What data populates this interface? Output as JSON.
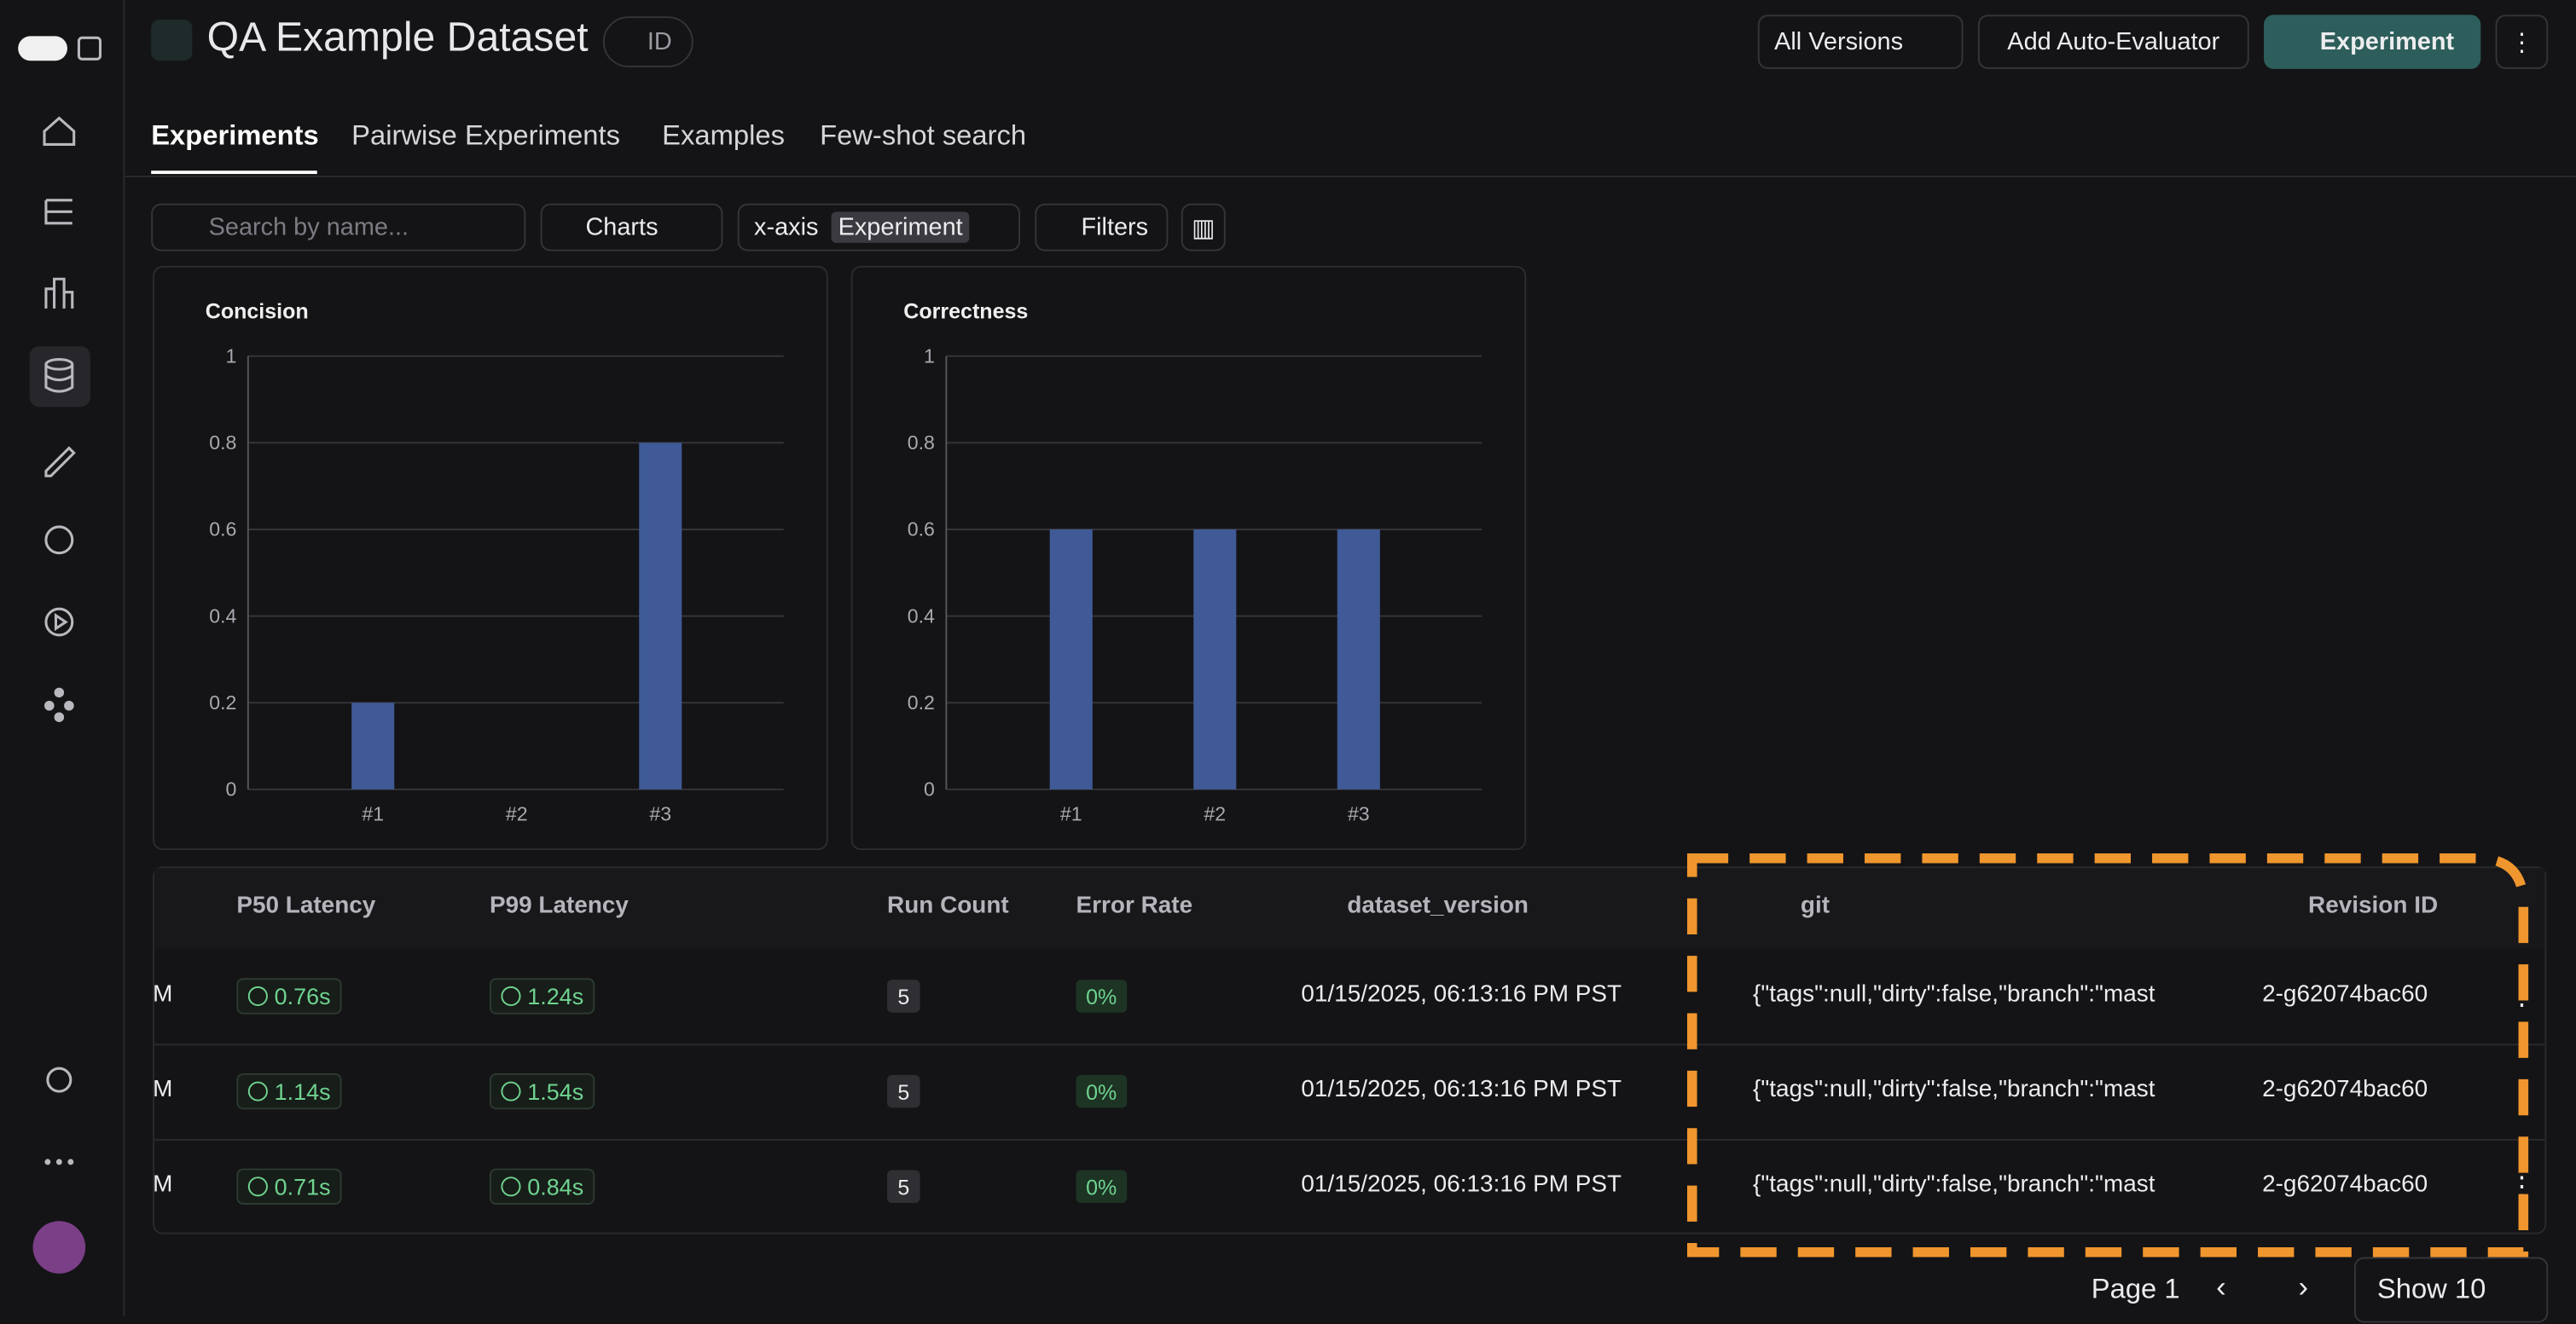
{
  "header": {
    "title": "QA Example Dataset",
    "id_button": "ID",
    "versions": "All Versions",
    "auto_evaluator": "Add Auto-Evaluator",
    "new_experiment": "Experiment"
  },
  "tabs": [
    "Experiments",
    "Pairwise Experiments",
    "Examples",
    "Few-shot search"
  ],
  "toolbar": {
    "search_placeholder": "Search by name...",
    "charts": "Charts",
    "x_axis_label": "x-axis",
    "x_axis_value": "Experiment",
    "filters": "Filters"
  },
  "charts": [
    {
      "type": "bar",
      "title": "Concision",
      "categories": [
        "#1",
        "#2",
        "#3"
      ],
      "values": [
        0.2,
        0,
        0.8
      ],
      "color": "#3f5a96",
      "ylim": [
        0,
        1
      ],
      "yticks": [
        0,
        0.2,
        0.4,
        0.6,
        0.8,
        1
      ],
      "grid": true
    },
    {
      "type": "bar",
      "title": "Correctness",
      "categories": [
        "#1",
        "#2",
        "#3"
      ],
      "values": [
        0.6,
        0.6,
        0.6
      ],
      "color": "#3f5a96",
      "ylim": [
        0,
        1
      ],
      "yticks": [
        0,
        0.2,
        0.4,
        0.6,
        0.8,
        1
      ],
      "grid": true
    }
  ],
  "table": {
    "columns": [
      "P50 Latency",
      "P99 Latency",
      "Run Count",
      "Error Rate",
      "dataset_version",
      "git",
      "Revision ID"
    ],
    "rows": [
      [
        "M",
        "0.76s",
        "1.24s",
        "5",
        "0%",
        "01/15/2025, 06:13:16 PM PST",
        "{\"tags\":null,\"dirty\":false,\"branch\":\"mast",
        "2-g62074bac60"
      ],
      [
        "M",
        "1.14s",
        "1.54s",
        "5",
        "0%",
        "01/15/2025, 06:13:16 PM PST",
        "{\"tags\":null,\"dirty\":false,\"branch\":\"mast",
        "2-g62074bac60"
      ],
      [
        "M",
        "0.71s",
        "0.84s",
        "5",
        "0%",
        "01/15/2025, 06:13:16 PM PST",
        "{\"tags\":null,\"dirty\":false,\"branch\":\"mast",
        "2-g62074bac60"
      ]
    ]
  },
  "pagination": {
    "page": "Page 1",
    "show": "Show 10"
  }
}
